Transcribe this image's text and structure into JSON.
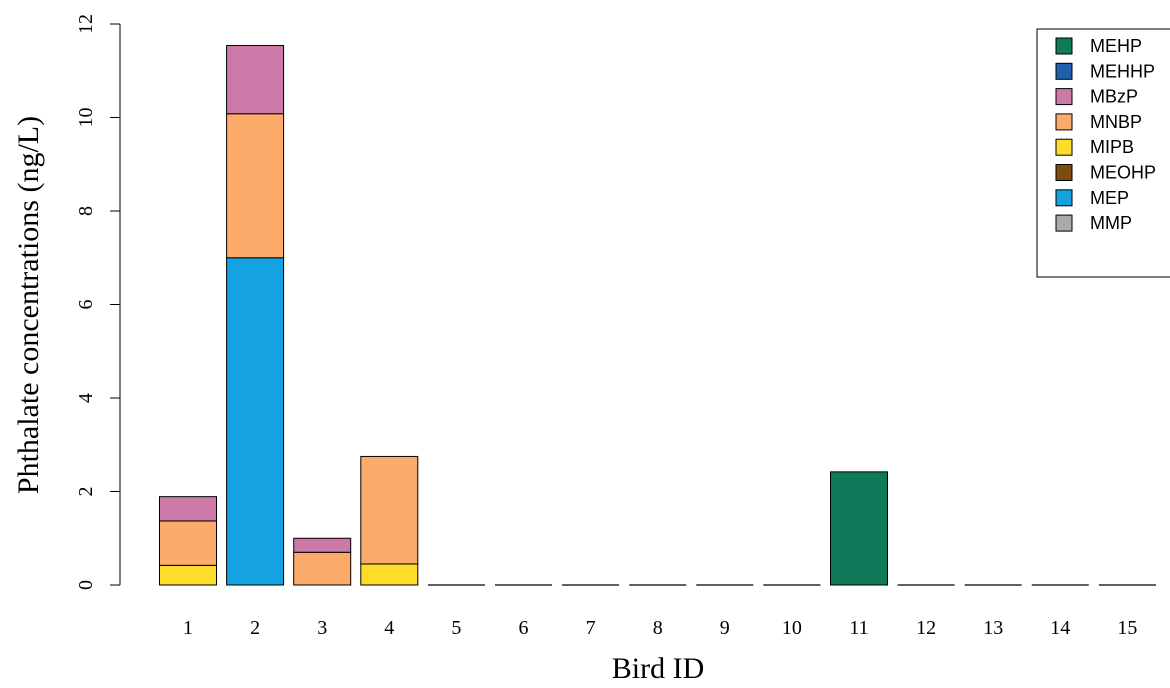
{
  "chart_data": {
    "type": "bar",
    "stacked": true,
    "xlabel": "Bird ID",
    "ylabel": "Phthalate concentrations (ng/L)",
    "ylim": [
      0,
      12
    ],
    "yticks": [
      0,
      2,
      4,
      6,
      8,
      10,
      12
    ],
    "categories": [
      "1",
      "2",
      "3",
      "4",
      "5",
      "6",
      "7",
      "8",
      "9",
      "10",
      "11",
      "12",
      "13",
      "14",
      "15"
    ],
    "series": [
      {
        "name": "MEHP",
        "color": "#0f7a5a",
        "values": [
          0,
          0,
          0,
          0,
          0,
          0,
          0,
          0,
          0,
          0,
          2.42,
          0,
          0,
          0,
          0
        ]
      },
      {
        "name": "MEHHP",
        "color": "#1f5fae",
        "values": [
          0,
          0,
          0,
          0,
          0,
          0,
          0,
          0,
          0,
          0,
          0,
          0,
          0,
          0,
          0
        ]
      },
      {
        "name": "MBzP",
        "color": "#cc79a7",
        "values": [
          0.52,
          1.46,
          0.3,
          0,
          0,
          0,
          0,
          0,
          0,
          0,
          0,
          0,
          0,
          0,
          0
        ]
      },
      {
        "name": "MNBP",
        "color": "#fdab6b",
        "values": [
          0.95,
          3.08,
          0.7,
          2.3,
          0,
          0,
          0,
          0,
          0,
          0,
          0,
          0,
          0,
          0,
          0
        ]
      },
      {
        "name": "MIPB",
        "color": "#fddc2a",
        "values": [
          0.42,
          0,
          0,
          0.45,
          0,
          0,
          0,
          0,
          0,
          0,
          0,
          0,
          0,
          0,
          0
        ]
      },
      {
        "name": "MEOHP",
        "color": "#7d4a10",
        "values": [
          0,
          0,
          0,
          0,
          0,
          0,
          0,
          0,
          0,
          0,
          0,
          0,
          0,
          0,
          0
        ]
      },
      {
        "name": "MEP",
        "color": "#14a3e0",
        "values": [
          0,
          7.0,
          0,
          0,
          0,
          0,
          0,
          0,
          0,
          0,
          0,
          0,
          0,
          0,
          0
        ]
      },
      {
        "name": "MMP",
        "color": "#a9a9a9",
        "values": [
          0,
          0,
          0,
          0,
          0,
          0,
          0,
          0,
          0,
          0,
          0,
          0,
          0,
          0,
          0
        ]
      }
    ],
    "stack_order": [
      "MIPB",
      "MEP",
      "MNBP",
      "MBzP",
      "MEHP",
      "MEHHP",
      "MEOHP",
      "MMP"
    ],
    "legend_position": "top-right",
    "grid": false
  }
}
